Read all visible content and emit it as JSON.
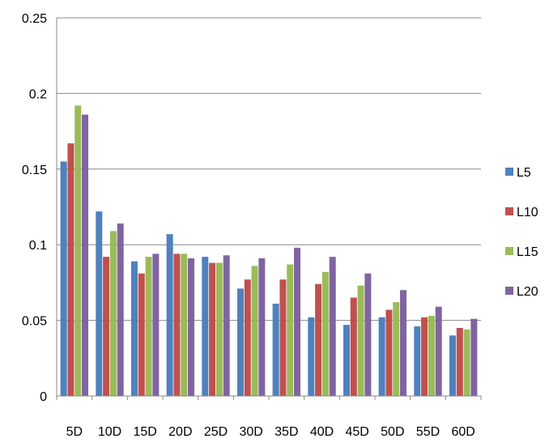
{
  "chart_data": {
    "type": "bar",
    "categories": [
      "5D",
      "10D",
      "15D",
      "20D",
      "25D",
      "30D",
      "35D",
      "40D",
      "45D",
      "50D",
      "55D",
      "60D"
    ],
    "series": [
      {
        "name": "L5",
        "color": "#4F81BD",
        "values": [
          0.155,
          0.122,
          0.089,
          0.107,
          0.092,
          0.071,
          0.061,
          0.052,
          0.047,
          0.052,
          0.046,
          0.04
        ]
      },
      {
        "name": "L10",
        "color": "#C0504D",
        "values": [
          0.167,
          0.092,
          0.081,
          0.094,
          0.088,
          0.077,
          0.077,
          0.074,
          0.065,
          0.057,
          0.052,
          0.045
        ]
      },
      {
        "name": "L15",
        "color": "#9BBB59",
        "values": [
          0.192,
          0.109,
          0.092,
          0.094,
          0.088,
          0.086,
          0.087,
          0.082,
          0.073,
          0.062,
          0.053,
          0.044
        ]
      },
      {
        "name": "L20",
        "color": "#8064A2",
        "values": [
          0.186,
          0.114,
          0.094,
          0.091,
          0.093,
          0.091,
          0.098,
          0.092,
          0.081,
          0.07,
          0.059,
          0.051
        ]
      }
    ],
    "y_ticks": [
      "0",
      "0.05",
      "0.1",
      "0.15",
      "0.2",
      "0.25"
    ],
    "ylim": [
      0,
      0.25
    ],
    "grid": true,
    "legend_position": "right"
  }
}
